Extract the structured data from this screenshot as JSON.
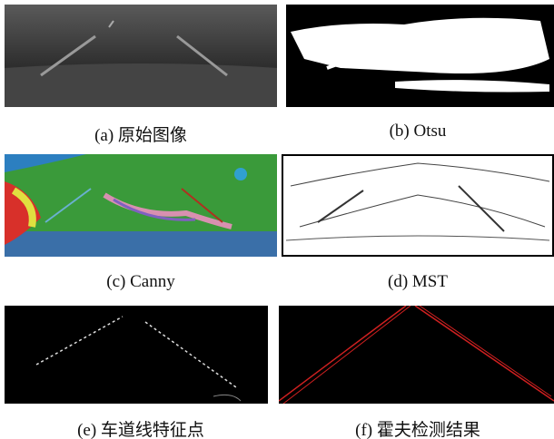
{
  "panels": [
    {
      "caption": "(a) 原始图像"
    },
    {
      "caption": "(b) Otsu"
    },
    {
      "caption": "(c) Canny"
    },
    {
      "caption": "(d) MST"
    },
    {
      "caption": "(e) 车道线特征点"
    },
    {
      "caption": "(f) 霍夫检测结果"
    }
  ]
}
